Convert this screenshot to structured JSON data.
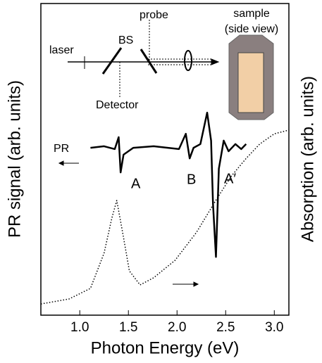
{
  "chart_data": {
    "type": "line",
    "xlabel": "Photon Energy (eV)",
    "ylabel": "PR signal (arb. units)",
    "y2label": "Absorption (arb. units)",
    "xlim": [
      0.6,
      3.15
    ],
    "ylim": [
      0,
      10
    ],
    "xticks": [
      {
        "value": 1,
        "label": "1.0"
      },
      1.5,
      {
        "value": 2,
        "label": "2.0"
      },
      2.5,
      {
        "value": 3,
        "label": "3.0"
      }
    ],
    "series": [
      {
        "color": "#000000",
        "style": "solid",
        "x": [
          1.11,
          1.25,
          1.36,
          1.4,
          1.42,
          1.45,
          1.55,
          1.76,
          2.02,
          2.09,
          2.13,
          2.17,
          2.24,
          2.31,
          2.35,
          2.37,
          2.4,
          2.43,
          2.48,
          2.53,
          2.6,
          2.66,
          2.71
        ],
        "values": [
          5.37,
          5.42,
          5.33,
          5.71,
          4.58,
          5.15,
          5.37,
          5.42,
          5.33,
          5.82,
          5.03,
          5.37,
          5.49,
          6.5,
          5.6,
          3.57,
          1.87,
          4.7,
          5.6,
          5.26,
          5.49,
          5.33,
          5.49
        ]
      },
      {
        "color": "#000000",
        "style": "dotted",
        "x": [
          0.6,
          0.89,
          1.11,
          1.25,
          1.33,
          1.38,
          1.44,
          1.51,
          1.62,
          1.76,
          1.98,
          2.2,
          2.42,
          2.56,
          2.71,
          2.85,
          3.0,
          3.15
        ],
        "values": [
          0.36,
          0.52,
          0.86,
          1.99,
          3.12,
          3.68,
          2.66,
          1.42,
          0.97,
          1.2,
          1.76,
          2.66,
          3.79,
          4.47,
          5.03,
          5.49,
          5.82,
          5.94
        ]
      }
    ],
    "annotations": {
      "A": "A",
      "B": "B",
      "A_prime": "A′",
      "PR": "PR",
      "laser": "laser",
      "BS": "BS",
      "probe": "probe",
      "sample": "sample",
      "side_view": "(side view)",
      "detector": "Detector"
    }
  }
}
